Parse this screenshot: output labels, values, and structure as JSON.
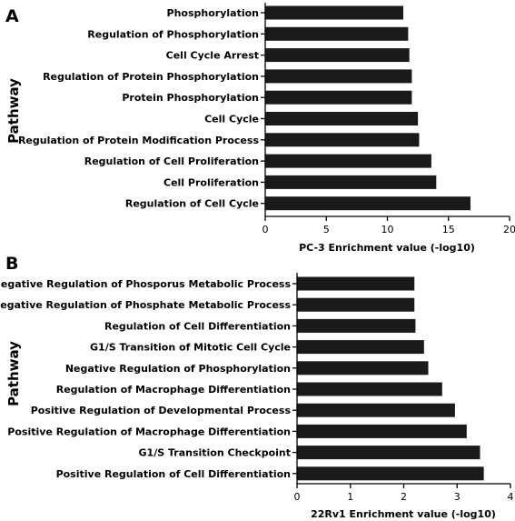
{
  "chart_data": [
    {
      "panel": "A",
      "type": "bar",
      "orientation": "horizontal",
      "ylabel": "Pathway",
      "xlabel": "PC-3 Enrichment value (-log10)",
      "xlim": [
        0,
        20
      ],
      "xticks": [
        0,
        5,
        10,
        15,
        20
      ],
      "bar_color": "#1a1a1a",
      "categories": [
        "Phosphorylation",
        "Regulation of Phosphorylation",
        "Cell Cycle Arrest",
        "Regulation of Protein Phosphorylation",
        "Protein Phosphorylation",
        "Cell Cycle",
        "Regulation of Protein Modification Process",
        "Regulation of Cell Proliferation",
        "Cell Proliferation",
        "Regulation of Cell Cycle"
      ],
      "values": [
        11.3,
        11.7,
        11.8,
        12.0,
        12.0,
        12.5,
        12.6,
        13.6,
        14.0,
        16.8
      ]
    },
    {
      "panel": "B",
      "type": "bar",
      "orientation": "horizontal",
      "ylabel": "Pathway",
      "xlabel": "22Rv1 Enrichment value (-log10)",
      "xlim": [
        0,
        4
      ],
      "xticks": [
        0,
        1,
        2,
        3,
        4
      ],
      "bar_color": "#1a1a1a",
      "categories": [
        "Negative Regulation of Phosporus Metabolic Process",
        "Negative Regulation of Phosphate Metabolic Process",
        "Regulation of Cell Differentiation",
        "G1/S Transition of Mitotic Cell Cycle",
        "Negative Regulation of Phosphorylation",
        "Regulation of Macrophage Differentiation",
        "Positive Regulation of Developmental Process",
        "Positive Regulation of Macrophage Differentiation",
        "G1/S Transition Checkpoint",
        "Positive Regulation of Cell Differentiation"
      ],
      "values": [
        2.2,
        2.2,
        2.22,
        2.38,
        2.46,
        2.72,
        2.96,
        3.18,
        3.43,
        3.5
      ]
    }
  ]
}
